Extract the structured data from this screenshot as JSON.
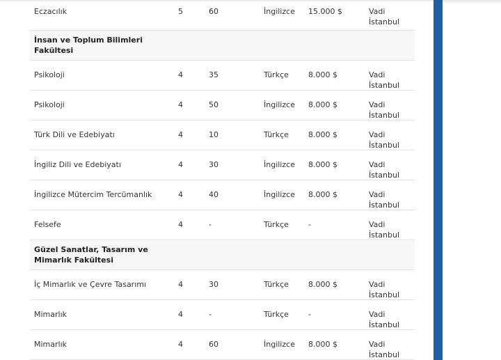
{
  "rows": [
    {
      "kind": "data",
      "name": "Eczacılık",
      "years": "5",
      "quota": "60",
      "language": "İngilizce",
      "fee": "15.000 $",
      "campus": "Vadi İstanbul"
    },
    {
      "kind": "faculty",
      "title": "İnsan ve Toplum Bilimleri Fakültesi"
    },
    {
      "kind": "data",
      "name": "Psikoloji",
      "years": "4",
      "quota": "35",
      "language": "Türkçe",
      "fee": "8.000 $",
      "campus": "Vadi İstanbul"
    },
    {
      "kind": "data",
      "name": "Psikoloji",
      "years": "4",
      "quota": "50",
      "language": "İngilizce",
      "fee": "8.000 $",
      "campus": "Vadi İstanbul"
    },
    {
      "kind": "data",
      "name": "Türk Dili ve Edebiyatı",
      "years": "4",
      "quota": "10",
      "language": "Türkçe",
      "fee": "8.000 $",
      "campus": "Vadi İstanbul"
    },
    {
      "kind": "data",
      "name": "İngiliz Dili ve Edebiyatı",
      "years": "4",
      "quota": "30",
      "language": "İngilizce",
      "fee": "8.000 $",
      "campus": "Vadi İstanbul"
    },
    {
      "kind": "data",
      "name": "İngilizce Mütercim Tercümanlık",
      "years": "4",
      "quota": "40",
      "language": "İngilizce",
      "fee": "8.000 $",
      "campus": "Vadi İstanbul"
    },
    {
      "kind": "data",
      "name": "Felsefe",
      "years": "4",
      "quota": "-",
      "language": "Türkçe",
      "fee": "-",
      "campus": "Vadi İstanbul"
    },
    {
      "kind": "faculty",
      "title": "Güzel Sanatlar, Tasarım ve Mimarlık Fakültesi"
    },
    {
      "kind": "data",
      "name": "İç Mimarlık ve Çevre Tasarımı",
      "years": "4",
      "quota": "30",
      "language": "Türkçe",
      "fee": "8.000 $",
      "campus": "Vadi İstanbul"
    },
    {
      "kind": "data",
      "name": "Mimarlık",
      "years": "4",
      "quota": "-",
      "language": "Türkçe",
      "fee": "-",
      "campus": "Vadi İstanbul"
    },
    {
      "kind": "data",
      "name": "Mimarlık",
      "years": "4",
      "quota": "60",
      "language": "İngilizce",
      "fee": "8.000  $",
      "campus": "Vadi İstanbul"
    }
  ],
  "colors": {
    "scrollbar": "#1a5fa8",
    "header_bg": "#f7f7f7",
    "border": "#e2e2e2"
  }
}
